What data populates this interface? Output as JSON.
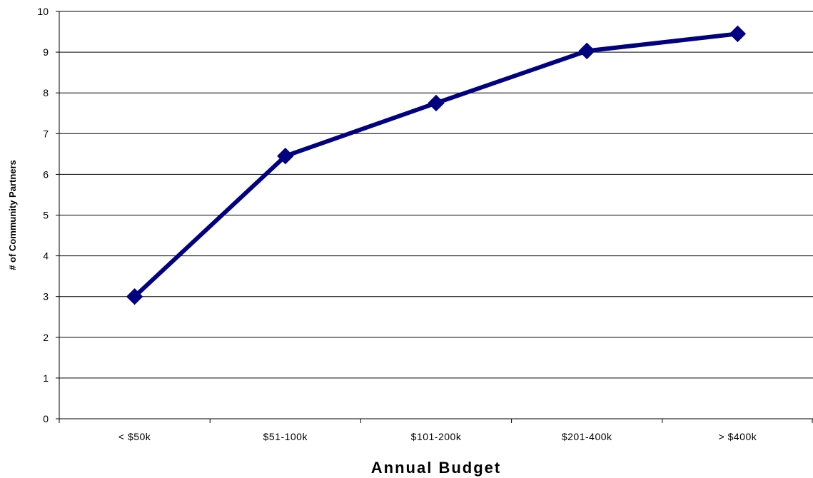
{
  "chart_data": {
    "type": "line",
    "categories": [
      "< $50k",
      "$51-100k",
      "$101-200k",
      "$201-400k",
      "> $400k"
    ],
    "series": [
      {
        "values": [
          3.0,
          6.45,
          7.75,
          9.03,
          9.45
        ],
        "color": "#000080"
      }
    ],
    "xlabel": "Annual Budget",
    "ylabel": "# of Community Partners",
    "ylim": [
      0,
      10
    ],
    "yticks": [
      "0",
      "1",
      "2",
      "3",
      "4",
      "5",
      "6",
      "7",
      "8",
      "9",
      "10"
    ],
    "grid": true,
    "legend": "none"
  }
}
